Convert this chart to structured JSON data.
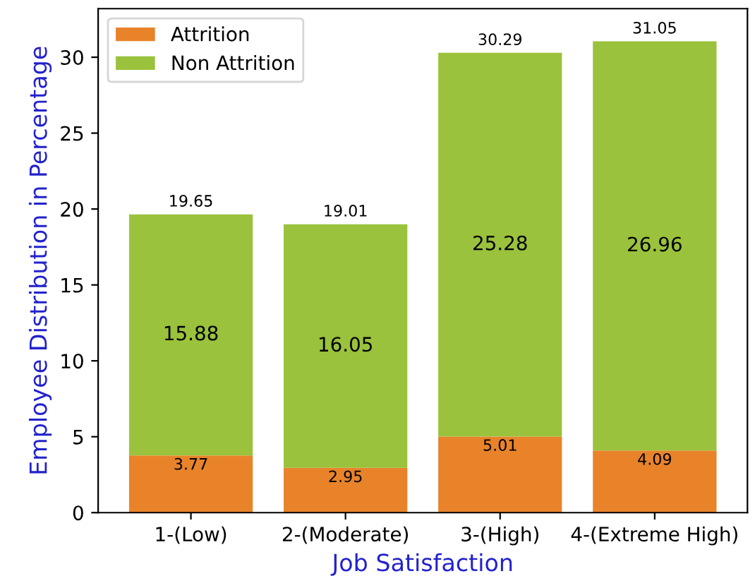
{
  "chart_data": {
    "type": "bar",
    "stacked": true,
    "xlabel": "Job Satisfaction",
    "ylabel": "Employee Distribution in Percentage",
    "categories": [
      "1-(Low)",
      "2-(Moderate)",
      "3-(High)",
      "4-(Extreme High)"
    ],
    "series": [
      {
        "name": "Attrition",
        "color": "#e8832a",
        "values": [
          3.77,
          2.95,
          5.01,
          4.09
        ]
      },
      {
        "name": "Non Attrition",
        "color": "#9ac23c",
        "values": [
          15.88,
          16.05,
          25.28,
          26.96
        ]
      }
    ],
    "totals": [
      "19.65",
      "19.01",
      "30.29",
      "31.05"
    ],
    "data_labels": true,
    "ylim": [
      0,
      33.2
    ],
    "yticks": [
      0,
      5,
      10,
      15,
      20,
      25,
      30
    ],
    "legend": "top left",
    "grid": false
  }
}
